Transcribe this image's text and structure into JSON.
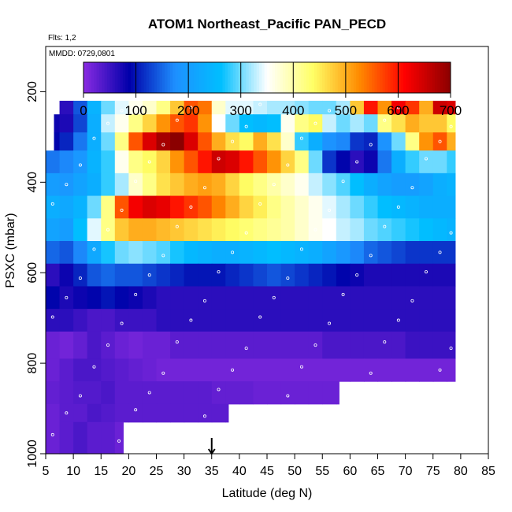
{
  "chart_data": {
    "type": "heatmap",
    "title": "ATOM1 Northeast_Pacific PAN_PECD",
    "subtitle_flts": "Flts: 1,2",
    "subtitle_mmdd": "MMDD: 0729,0801",
    "xlabel": "Latitude (deg N)",
    "ylabel": "PSXC (mbar)",
    "xlim": [
      5,
      85
    ],
    "ylim": [
      1000,
      100
    ],
    "x_ticks": [
      5,
      10,
      15,
      20,
      25,
      30,
      35,
      40,
      45,
      50,
      55,
      60,
      65,
      70,
      75,
      80,
      85
    ],
    "y_ticks": [
      200,
      400,
      600,
      800,
      1000
    ],
    "colorbar": {
      "range": [
        0,
        700
      ],
      "ticks": [
        0,
        100,
        200,
        300,
        400,
        500,
        600,
        700
      ],
      "colors": [
        "#8a2be2",
        "#0000aa",
        "#1e90ff",
        "#00bfff",
        "#ffffff",
        "#ffff66",
        "#ff8c00",
        "#ff0000",
        "#8b0000"
      ]
    },
    "marker_latitude": 35,
    "lat_edges": [
      5,
      7.5,
      10,
      12.5,
      15,
      17.5,
      20,
      22.5,
      25,
      27.5,
      30,
      32.5,
      35,
      37.5,
      40,
      42.5,
      45,
      47.5,
      50,
      52.5,
      55,
      57.5,
      60,
      62.5,
      65,
      67.5,
      70,
      72.5,
      75,
      77.5,
      79
    ],
    "layers": [
      {
        "p_top": 220,
        "p_bottom": 250,
        "start_lat": 7.5,
        "values": [
          70,
          60,
          140,
          240,
          300,
          340,
          360,
          380,
          420,
          480,
          560,
          540,
          380,
          340,
          340,
          330,
          320,
          320,
          310,
          300,
          300,
          320,
          480,
          600,
          520,
          620,
          580,
          500,
          650,
          640
        ]
      },
      {
        "p_top": 250,
        "p_bottom": 290,
        "start_lat": 6.5,
        "values": [
          80,
          70,
          130,
          230,
          330,
          360,
          420,
          470,
          520,
          560,
          580,
          520,
          350,
          300,
          260,
          250,
          260,
          360,
          420,
          440,
          330,
          300,
          320,
          300,
          420,
          460,
          500,
          480,
          480,
          440
        ]
      },
      {
        "p_top": 290,
        "p_bottom": 330,
        "start_lat": 6.5,
        "values": [
          90,
          110,
          160,
          230,
          300,
          420,
          560,
          640,
          680,
          700,
          640,
          560,
          500,
          460,
          440,
          500,
          460,
          380,
          280,
          230,
          180,
          170,
          120,
          110,
          180,
          300,
          420,
          520,
          560,
          500
        ]
      },
      {
        "p_top": 330,
        "p_bottom": 380,
        "start_lat": 5.0,
        "values": [
          160,
          170,
          190,
          240,
          280,
          360,
          420,
          440,
          470,
          520,
          560,
          600,
          650,
          640,
          600,
          560,
          520,
          470,
          420,
          300,
          120,
          90,
          60,
          80,
          160,
          230,
          280,
          300,
          300,
          280
        ]
      },
      {
        "p_top": 380,
        "p_bottom": 430,
        "start_lat": 5.0,
        "values": [
          200,
          190,
          210,
          230,
          280,
          320,
          380,
          420,
          460,
          480,
          500,
          510,
          500,
          470,
          440,
          420,
          400,
          380,
          360,
          330,
          310,
          290,
          260,
          230,
          210,
          200,
          200,
          210,
          230,
          240
        ]
      },
      {
        "p_top": 430,
        "p_bottom": 480,
        "start_lat": 5.0,
        "values": [
          230,
          220,
          240,
          300,
          420,
          560,
          620,
          640,
          630,
          600,
          580,
          560,
          530,
          500,
          470,
          450,
          420,
          400,
          380,
          360,
          340,
          320,
          300,
          280,
          260,
          250,
          240,
          230,
          230,
          230
        ]
      },
      {
        "p_top": 480,
        "p_bottom": 530,
        "start_lat": 5.0,
        "values": [
          210,
          200,
          260,
          340,
          420,
          480,
          500,
          500,
          490,
          480,
          470,
          460,
          450,
          440,
          430,
          420,
          410,
          400,
          380,
          360,
          350,
          330,
          320,
          300,
          290,
          280,
          270,
          260,
          250,
          240
        ]
      },
      {
        "p_top": 530,
        "p_bottom": 580,
        "start_lat": 5.0,
        "values": [
          150,
          140,
          170,
          220,
          270,
          300,
          310,
          300,
          290,
          270,
          250,
          240,
          230,
          230,
          240,
          250,
          260,
          250,
          240,
          230,
          210,
          190,
          170,
          150,
          140,
          130,
          120,
          120,
          120,
          120
        ]
      },
      {
        "p_top": 580,
        "p_bottom": 630,
        "start_lat": 5.0,
        "values": [
          60,
          80,
          110,
          140,
          150,
          140,
          140,
          130,
          120,
          110,
          100,
          100,
          100,
          110,
          120,
          130,
          140,
          130,
          120,
          110,
          100,
          90,
          80,
          70,
          70,
          70,
          70,
          70,
          70,
          70
        ]
      },
      {
        "p_top": 630,
        "p_bottom": 680,
        "start_lat": 5.0,
        "values": [
          90,
          70,
          80,
          90,
          100,
          90,
          80,
          70,
          60,
          60,
          60,
          60,
          60,
          60,
          60,
          60,
          60,
          60,
          60,
          60,
          60,
          60,
          60,
          60,
          60,
          60,
          60,
          60,
          60,
          60
        ]
      },
      {
        "p_top": 680,
        "p_bottom": 730,
        "start_lat": 5.0,
        "values": [
          60,
          60,
          50,
          40,
          40,
          50,
          50,
          50,
          60,
          60,
          60,
          60,
          60,
          60,
          60,
          60,
          60,
          60,
          60,
          60,
          60,
          60,
          60,
          60,
          60,
          60,
          60,
          60,
          60,
          60
        ]
      },
      {
        "p_top": 730,
        "p_bottom": 790,
        "start_lat": 5.0,
        "values": [
          20,
          15,
          25,
          40,
          30,
          20,
          15,
          20,
          20,
          30,
          30,
          30,
          30,
          30,
          30,
          30,
          30,
          30,
          30,
          30,
          40,
          40,
          40,
          40,
          40,
          40,
          50,
          50,
          50,
          50
        ]
      },
      {
        "p_top": 790,
        "p_bottom": 840,
        "start_lat": 5.0,
        "values": [
          20,
          30,
          40,
          40,
          35,
          30,
          25,
          20,
          15,
          15,
          15,
          15,
          15,
          15,
          15,
          15,
          15,
          15,
          15,
          15,
          15,
          15,
          15,
          15,
          15,
          15,
          15,
          15,
          15,
          15
        ]
      },
      {
        "p_top": 840,
        "p_bottom": 890,
        "start_lat": 5.0,
        "end_lat": 58,
        "values": [
          25,
          30,
          35,
          35,
          40,
          30,
          30,
          30,
          30,
          30,
          30,
          30,
          25,
          25,
          25,
          20,
          20,
          20,
          20,
          20,
          20,
          20
        ]
      },
      {
        "p_top": 890,
        "p_bottom": 930,
        "start_lat": 5.0,
        "end_lat": 38,
        "values": [
          20,
          30,
          30,
          40,
          35,
          30,
          30,
          30,
          30,
          30,
          30,
          30,
          30,
          30
        ]
      },
      {
        "p_top": 930,
        "p_bottom": 1000,
        "start_lat": 5.0,
        "end_lat": 19,
        "values": [
          20,
          30,
          40,
          30,
          30,
          20
        ]
      }
    ]
  }
}
